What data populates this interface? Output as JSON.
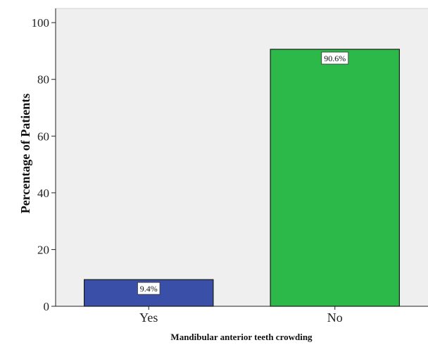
{
  "chart_data": {
    "type": "bar",
    "categories": [
      "Yes",
      "No"
    ],
    "values": [
      9.4,
      90.6
    ],
    "data_labels": [
      "9.4%",
      "90.6%"
    ],
    "colors": [
      "#3a4fa8",
      "#2db84a"
    ],
    "xlabel": "Mandibular anterior teeth crowding",
    "ylabel": "Percentage of Patients",
    "ylim": [
      0,
      105
    ],
    "yticks": [
      0,
      20,
      40,
      60,
      80,
      100
    ],
    "plot_background": "#efefef",
    "grid": false,
    "legend": "none"
  }
}
